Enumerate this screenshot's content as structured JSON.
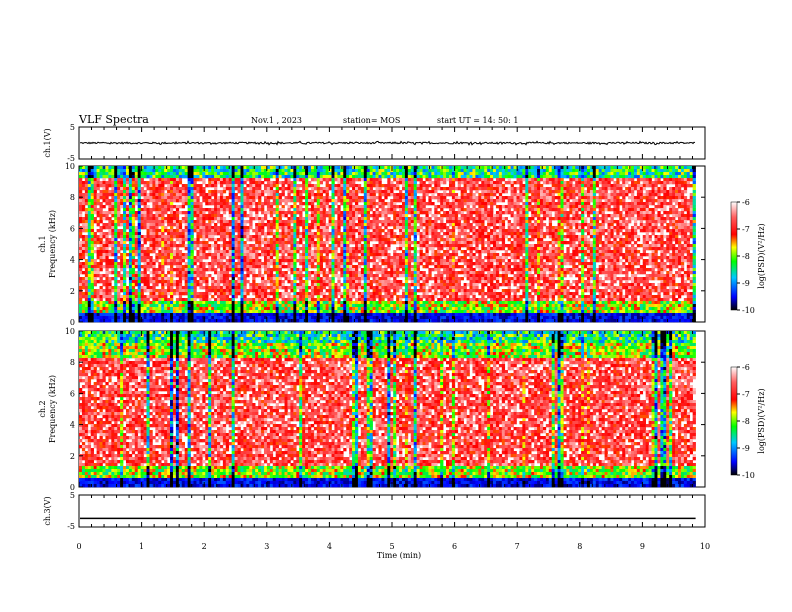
{
  "header": {
    "title": "VLF Spectra",
    "date": "Nov.1  , 2023",
    "station": "station= MOS",
    "start": "start  UT  =    14: 50: 1"
  },
  "colorbar": {
    "label": "log(PSD)(V²/Hz)",
    "ticks": [
      "-6",
      "-7",
      "-8",
      "-9",
      "-10"
    ],
    "range": [
      -10,
      -6
    ],
    "colors": [
      "#000000",
      "#0000ff",
      "#00c8ff",
      "#00ff00",
      "#ffff00",
      "#ff0000",
      "#ffffff"
    ]
  },
  "chart_data": [
    {
      "type": "line",
      "panel": "ch1-waveform",
      "ylabel": "ch.1(V)",
      "ylim": [
        -5,
        5
      ],
      "yticks": [
        "5",
        "-5"
      ],
      "xlim": [
        0,
        10
      ],
      "baseline": 0,
      "noise_amplitude": 0.25
    },
    {
      "type": "heatmap",
      "panel": "ch1-spectrogram",
      "ylabel": "ch.1 Frequency (kHz)",
      "ylim": [
        0,
        10
      ],
      "yticks": [
        "0",
        "2",
        "4",
        "6",
        "8",
        "10"
      ],
      "xlim": [
        0,
        9.85
      ],
      "zlim": [
        -10,
        -6
      ]
    },
    {
      "type": "heatmap",
      "panel": "ch2-spectrogram",
      "ylabel": "ch.2 Frequency (kHz)",
      "ylim": [
        0,
        10
      ],
      "yticks": [
        "0",
        "2",
        "4",
        "6",
        "8",
        "10"
      ],
      "xlim": [
        0,
        9.85
      ],
      "zlim": [
        -10,
        -6
      ]
    },
    {
      "type": "line",
      "panel": "ch3-waveform",
      "ylabel": "ch.3(V)",
      "ylim": [
        -5,
        5
      ],
      "yticks": [
        "5",
        "-5"
      ],
      "xlim": [
        0,
        10
      ],
      "baseline": -2.3,
      "noise_amplitude": 0
    }
  ],
  "xaxis": {
    "label": "Time  (min)",
    "ticks": [
      "0",
      "1",
      "2",
      "3",
      "4",
      "5",
      "6",
      "7",
      "8",
      "9",
      "10"
    ],
    "range": [
      0,
      10
    ]
  }
}
